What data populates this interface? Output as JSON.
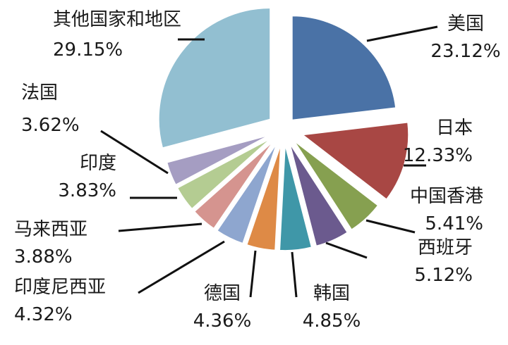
{
  "chart_data": {
    "type": "pie",
    "title": "",
    "unit": "%",
    "slices": [
      {
        "label": "美国",
        "value": 23.12,
        "value_text": "23.12%",
        "color": "#4a72a6"
      },
      {
        "label": "日本",
        "value": 12.33,
        "value_text": "12.33%",
        "color": "#a84744"
      },
      {
        "label": "中国香港",
        "value": 5.41,
        "value_text": "5.41%",
        "color": "#86a050"
      },
      {
        "label": "西班牙",
        "value": 5.12,
        "value_text": "5.12%",
        "color": "#6b5a8e"
      },
      {
        "label": "韩国",
        "value": 4.85,
        "value_text": "4.85%",
        "color": "#3f97a8"
      },
      {
        "label": "德国",
        "value": 4.36,
        "value_text": "4.36%",
        "color": "#de8a46"
      },
      {
        "label": "印度尼西亚",
        "value": 4.32,
        "value_text": "4.32%",
        "color": "#8ea6cf"
      },
      {
        "label": "马来西亚",
        "value": 3.88,
        "value_text": "3.88%",
        "color": "#d5948f"
      },
      {
        "label": "印度",
        "value": 3.83,
        "value_text": "3.83%",
        "color": "#b4cc92"
      },
      {
        "label": "法国",
        "value": 3.62,
        "value_text": "3.62%",
        "color": "#a59dc2"
      },
      {
        "label": "其他国家和地区",
        "value": 29.15,
        "value_text": "29.15%",
        "color": "#92bfd1"
      }
    ]
  }
}
